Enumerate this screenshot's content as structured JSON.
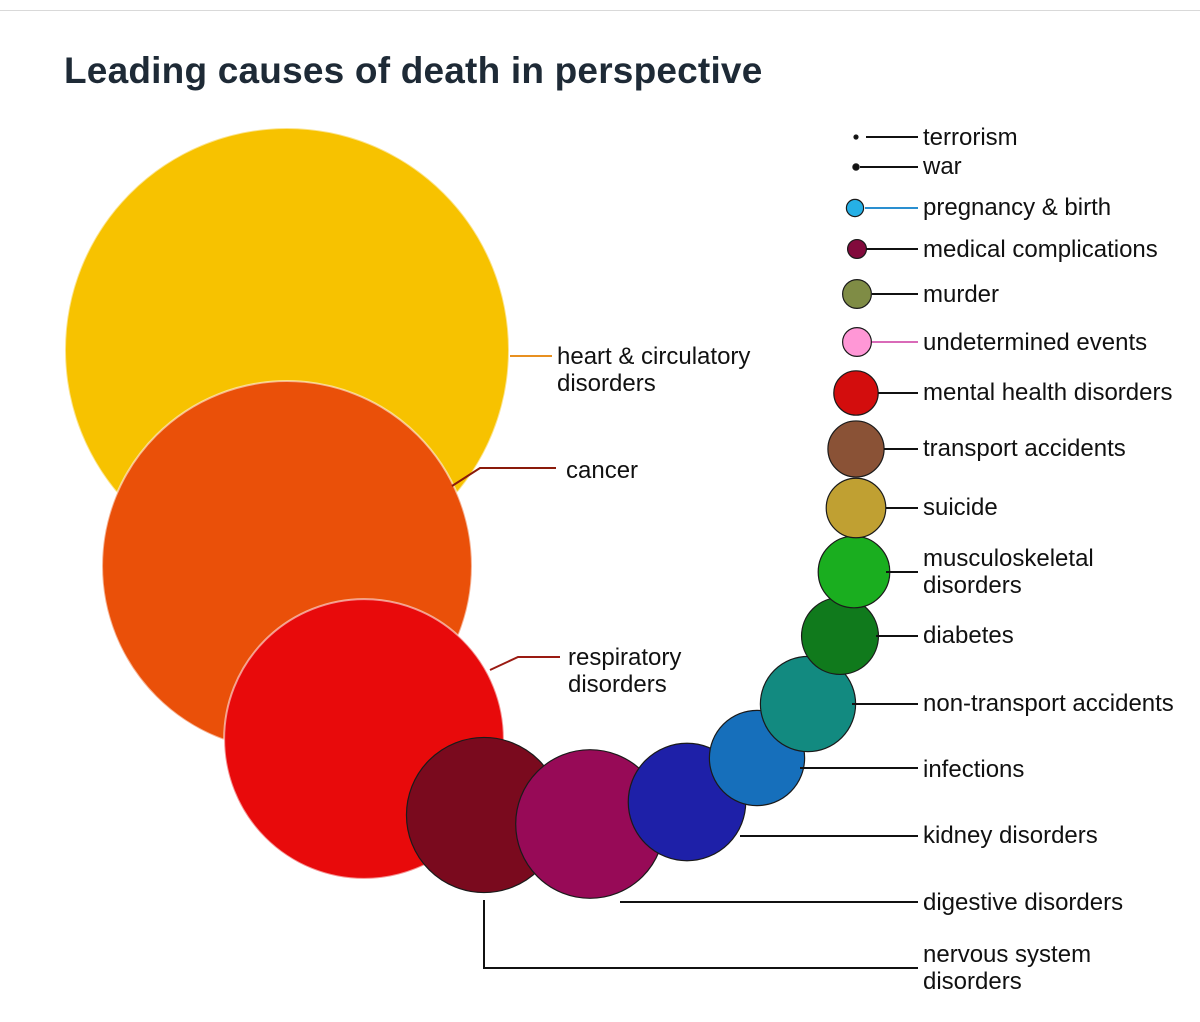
{
  "title": "Leading causes of death in perspective",
  "chart_data": {
    "type": "bubble",
    "title": "Leading causes of death in perspective",
    "size_scale": "relative (largest = 1.0, proportional to bubble area)",
    "series": [
      {
        "label": "heart & circulatory disorders",
        "relative_size": 1.0,
        "color": "#f7c200"
      },
      {
        "label": "cancer",
        "relative_size": 0.694,
        "color": "#ea5009"
      },
      {
        "label": "respiratory disorders",
        "relative_size": 0.397,
        "color": "#e80a0b"
      },
      {
        "label": "nervous system disorders",
        "relative_size": 0.122,
        "color": "#7a0a1e"
      },
      {
        "label": "digestive disorders",
        "relative_size": 0.112,
        "color": "#970a57"
      },
      {
        "label": "kidney disorders",
        "relative_size": 0.07,
        "color": "#1e20a8"
      },
      {
        "label": "infections",
        "relative_size": 0.046,
        "color": "#166fbb"
      },
      {
        "label": "non-transport accidents",
        "relative_size": 0.046,
        "color": "#128a80"
      },
      {
        "label": "diabetes",
        "relative_size": 0.03,
        "color": "#107a1c"
      },
      {
        "label": "musculoskeletal disorders",
        "relative_size": 0.026,
        "color": "#1aae1f"
      },
      {
        "label": "suicide",
        "relative_size": 0.018,
        "color": "#c0a032"
      },
      {
        "label": "transport accidents",
        "relative_size": 0.016,
        "color": "#8a5236"
      },
      {
        "label": "mental health disorders",
        "relative_size": 0.01,
        "color": "#d30d0d"
      },
      {
        "label": "undetermined events",
        "relative_size": 0.0042,
        "color": "#ff97d6"
      },
      {
        "label": "murder",
        "relative_size": 0.0042,
        "color": "#7f8c45"
      },
      {
        "label": "medical complications",
        "relative_size": 0.0018,
        "color": "#820a3c"
      },
      {
        "label": "pregnancy & birth",
        "relative_size": 0.0015,
        "color": "#26b0e6"
      },
      {
        "label": "war",
        "relative_size": 0.0002,
        "color": "#111111"
      },
      {
        "label": "terrorism",
        "relative_size": 3e-05,
        "color": "#111111"
      }
    ]
  }
}
